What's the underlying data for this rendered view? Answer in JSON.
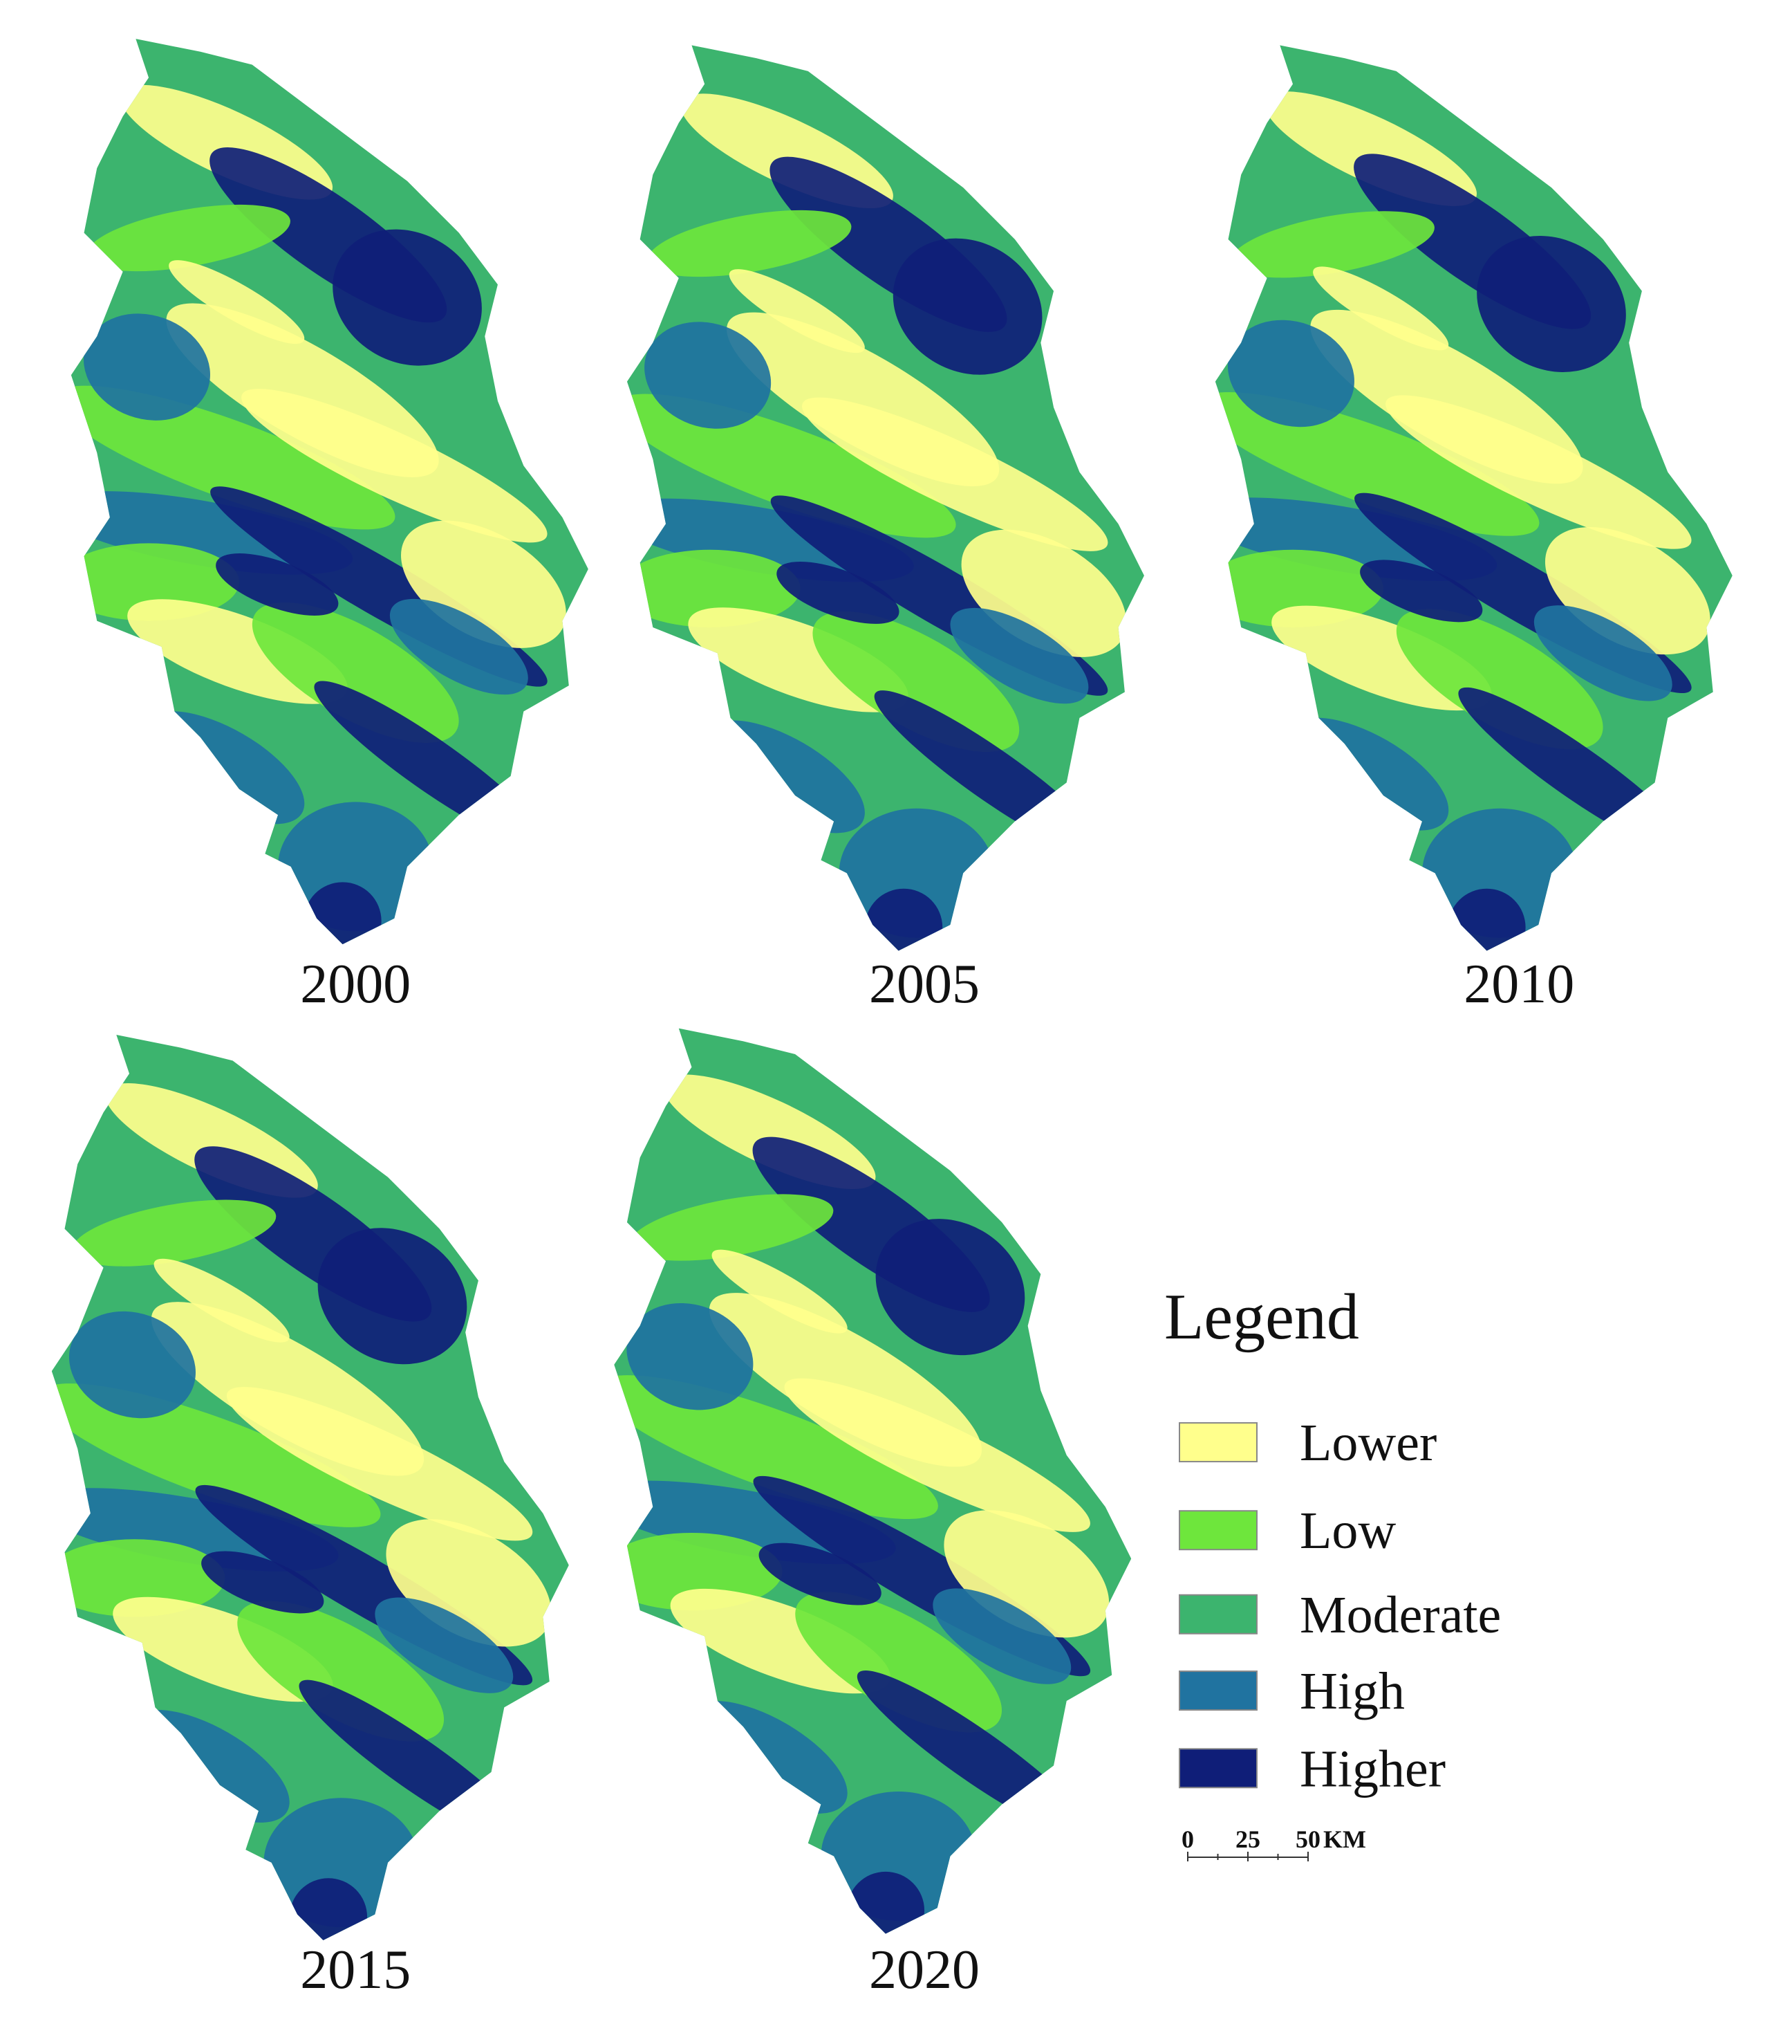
{
  "maps": [
    {
      "label": "2000"
    },
    {
      "label": "2005"
    },
    {
      "label": "2010"
    },
    {
      "label": "2015"
    },
    {
      "label": "2020"
    }
  ],
  "legend": {
    "title": "Legend",
    "items": [
      {
        "label": "Lower",
        "color": "#ffff8c"
      },
      {
        "label": "Low",
        "color": "#6ee63c"
      },
      {
        "label": "Moderate",
        "color": "#3cb46e"
      },
      {
        "label": "High",
        "color": "#2073a0"
      },
      {
        "label": "Higher",
        "color": "#0f1e78"
      }
    ]
  },
  "scale_bar": {
    "ticks": [
      "0",
      "25",
      "50"
    ],
    "unit": "KM"
  }
}
